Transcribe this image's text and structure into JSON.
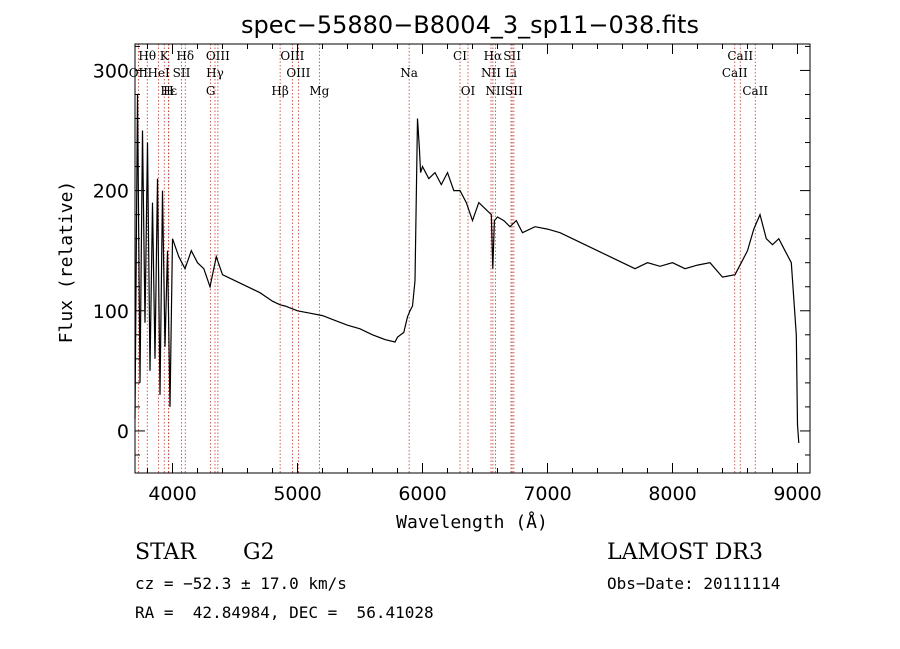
{
  "chart_data": {
    "type": "line",
    "title": "spec−55880−B8004_3_sp11−038.fits",
    "xlabel": "Wavelength (Å)",
    "ylabel": "Flux (relative)",
    "xlim": [
      3700,
      9100
    ],
    "ylim": [
      -35,
      322
    ],
    "xticks": [
      4000,
      5000,
      6000,
      7000,
      8000,
      9000
    ],
    "yticks": [
      0,
      100,
      200,
      300
    ],
    "series": [
      {
        "name": "flux",
        "x": [
          3700,
          3720,
          3740,
          3760,
          3780,
          3800,
          3820,
          3840,
          3860,
          3880,
          3900,
          3920,
          3940,
          3960,
          3980,
          4000,
          4050,
          4100,
          4150,
          4200,
          4250,
          4300,
          4350,
          4400,
          4500,
          4600,
          4700,
          4800,
          4861,
          4900,
          5000,
          5100,
          5200,
          5300,
          5400,
          5500,
          5600,
          5700,
          5780,
          5800,
          5850,
          5880,
          5900,
          5920,
          5940,
          5960,
          5975,
          5985,
          6000,
          6050,
          6100,
          6150,
          6200,
          6250,
          6300,
          6350,
          6400,
          6450,
          6500,
          6550,
          6562,
          6575,
          6600,
          6650,
          6700,
          6750,
          6800,
          6900,
          7000,
          7100,
          7200,
          7300,
          7400,
          7500,
          7600,
          7700,
          7800,
          7900,
          8000,
          8100,
          8200,
          8300,
          8400,
          8500,
          8550,
          8600,
          8650,
          8700,
          8750,
          8800,
          8850,
          8900,
          8950,
          8990,
          9000,
          9010
        ],
        "values": [
          10,
          280,
          40,
          250,
          90,
          240,
          50,
          190,
          60,
          210,
          30,
          200,
          70,
          150,
          20,
          160,
          145,
          135,
          150,
          140,
          135,
          120,
          145,
          130,
          125,
          120,
          115,
          108,
          105,
          104,
          100,
          98,
          96,
          92,
          88,
          85,
          80,
          76,
          74,
          78,
          82,
          95,
          100,
          104,
          125,
          260,
          235,
          215,
          220,
          210,
          215,
          205,
          215,
          200,
          200,
          190,
          175,
          190,
          185,
          180,
          135,
          175,
          178,
          175,
          170,
          175,
          165,
          170,
          168,
          165,
          160,
          155,
          150,
          145,
          140,
          135,
          140,
          137,
          140,
          135,
          138,
          140,
          128,
          130,
          140,
          150,
          168,
          180,
          160,
          155,
          160,
          150,
          140,
          80,
          5,
          -10
        ]
      }
    ],
    "spectral_lines": [
      {
        "label": "Hθ",
        "x": 3798
      },
      {
        "label": "K",
        "x": 3934
      },
      {
        "label": "Hδ",
        "x": 4102
      },
      {
        "label": "OIII",
        "x": 4363
      },
      {
        "label": "OIII",
        "x": 4959
      },
      {
        "label": "CI",
        "x": 6300
      },
      {
        "label": "Hα",
        "x": 6563
      },
      {
        "label": "SII",
        "x": 6717
      },
      {
        "label": "CaII",
        "x": 8542
      },
      {
        "label": "OII",
        "x": 3727
      },
      {
        "label": "HeI",
        "x": 3889
      },
      {
        "label": "SII",
        "x": 4072
      },
      {
        "label": "Hγ",
        "x": 4340
      },
      {
        "label": "OIII",
        "x": 5007
      },
      {
        "label": "Na",
        "x": 5893
      },
      {
        "label": "NII",
        "x": 6548
      },
      {
        "label": "Li",
        "x": 6708
      },
      {
        "label": "CaII",
        "x": 8498
      },
      {
        "label": "Hε",
        "x": 3970
      },
      {
        "label": "H",
        "x": 3968
      },
      {
        "label": "G",
        "x": 4305
      },
      {
        "label": "Hβ",
        "x": 4861
      },
      {
        "label": "Mg",
        "x": 5175
      },
      {
        "label": "OI",
        "x": 6364
      },
      {
        "label": "NII",
        "x": 6583
      },
      {
        "label": "SII",
        "x": 6731
      },
      {
        "label": "CaII",
        "x": 8662
      }
    ]
  },
  "info": {
    "class": "STAR",
    "subclass": "G2",
    "survey": "LAMOST DR3",
    "cz": "cz = −52.3 ± 17.0 km/s",
    "obs_date": "Obs−Date: 20111114",
    "coords": "RA =  42.84984, DEC =  56.41028"
  }
}
